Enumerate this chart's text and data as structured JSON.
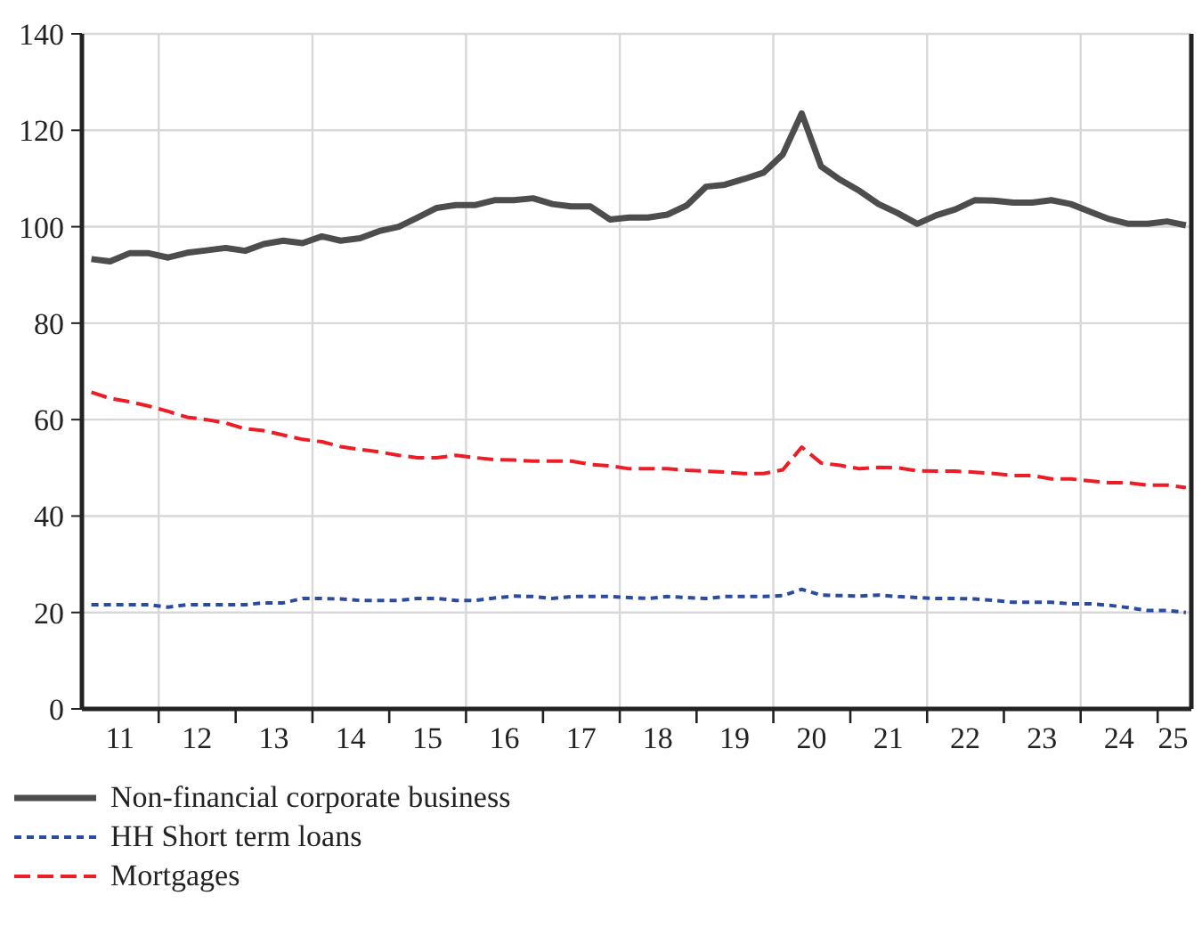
{
  "chart_data": {
    "type": "line",
    "x": [
      "2011-02-15",
      "2011-05-15",
      "2011-08-15",
      "2011-11-15",
      "2012-02-15",
      "2012-05-15",
      "2012-08-15",
      "2012-11-15",
      "2013-02-15",
      "2013-05-15",
      "2013-08-15",
      "2013-11-15",
      "2014-02-15",
      "2014-05-15",
      "2014-08-15",
      "2014-11-15",
      "2015-02-15",
      "2015-05-15",
      "2015-08-15",
      "2015-11-15",
      "2016-02-15",
      "2016-05-15",
      "2016-08-15",
      "2016-11-15",
      "2017-02-15",
      "2017-05-15",
      "2017-08-15",
      "2017-11-15",
      "2018-02-15",
      "2018-05-15",
      "2018-08-15",
      "2018-11-15",
      "2019-02-15",
      "2019-05-15",
      "2019-08-15",
      "2019-11-15",
      "2020-02-15",
      "2020-05-15",
      "2020-08-15",
      "2020-11-15",
      "2021-02-15",
      "2021-05-15",
      "2021-08-15",
      "2021-11-15",
      "2022-02-15",
      "2022-05-15",
      "2022-08-15",
      "2022-11-15",
      "2023-02-15",
      "2023-05-15",
      "2023-08-15",
      "2023-11-15",
      "2024-02-15",
      "2024-05-15",
      "2024-08-15",
      "2024-11-15",
      "2025-02-15",
      "2025-05-15"
    ],
    "xlim": [
      "2011-01-01",
      "2025-06-10"
    ],
    "xticks": [
      {
        "value": "2011-07-01",
        "label": "11"
      },
      {
        "value": "2012-07-01",
        "label": "12"
      },
      {
        "value": "2013-07-01",
        "label": "13"
      },
      {
        "value": "2014-07-01",
        "label": "14"
      },
      {
        "value": "2015-07-01",
        "label": "15"
      },
      {
        "value": "2016-07-01",
        "label": "16"
      },
      {
        "value": "2017-07-01",
        "label": "17"
      },
      {
        "value": "2018-07-01",
        "label": "18"
      },
      {
        "value": "2019-07-01",
        "label": "19"
      },
      {
        "value": "2020-07-01",
        "label": "20"
      },
      {
        "value": "2021-07-01",
        "label": "21"
      },
      {
        "value": "2022-07-01",
        "label": "22"
      },
      {
        "value": "2023-07-01",
        "label": "23"
      },
      {
        "value": "2024-07-01",
        "label": "24"
      },
      {
        "value": "2025-03-15",
        "label": "25"
      },
      {
        "value": "2012-01-01",
        "label": null
      },
      {
        "value": "2013-01-01",
        "label": null
      },
      {
        "value": "2014-01-01",
        "label": null
      },
      {
        "value": "2015-01-01",
        "label": null
      },
      {
        "value": "2016-01-01",
        "label": null
      },
      {
        "value": "2017-01-01",
        "label": null
      },
      {
        "value": "2018-01-01",
        "label": null
      },
      {
        "value": "2019-01-01",
        "label": null
      },
      {
        "value": "2020-01-01",
        "label": null
      },
      {
        "value": "2021-01-01",
        "label": null
      },
      {
        "value": "2022-01-01",
        "label": null
      },
      {
        "value": "2023-01-01",
        "label": null
      },
      {
        "value": "2024-01-01",
        "label": null
      },
      {
        "value": "2025-01-01",
        "label": null
      }
    ],
    "series": [
      {
        "name": "Non-financial corporate business",
        "color": "#4d4d4d",
        "line_style": "solid",
        "values": [
          93.3,
          92.8,
          94.5,
          94.5,
          93.6,
          94.6,
          95.1,
          95.6,
          95.0,
          96.4,
          97.1,
          96.6,
          98.0,
          97.1,
          97.6,
          99.1,
          100.0,
          101.9,
          103.9,
          104.5,
          104.5,
          105.5,
          105.5,
          105.9,
          104.7,
          104.2,
          104.2,
          101.5,
          101.9,
          101.9,
          102.5,
          104.4,
          108.3,
          108.7,
          109.9,
          111.2,
          115.0,
          123.5,
          112.5,
          109.7,
          107.4,
          104.7,
          102.8,
          100.6,
          102.4,
          103.6,
          105.5,
          105.4,
          105.0,
          105.0,
          105.5,
          104.7,
          103.1,
          101.6,
          100.6,
          100.6,
          101.1,
          100.3
        ]
      },
      {
        "name": "HH Short term loans",
        "color": "#2b4ba0",
        "line_style": "dotted",
        "values": [
          21.6,
          21.6,
          21.6,
          21.6,
          21.1,
          21.6,
          21.6,
          21.6,
          21.6,
          22.0,
          22.0,
          22.9,
          22.9,
          22.8,
          22.5,
          22.5,
          22.5,
          22.9,
          22.9,
          22.5,
          22.5,
          23.0,
          23.4,
          23.3,
          22.9,
          23.3,
          23.3,
          23.3,
          23.1,
          22.9,
          23.3,
          23.1,
          22.9,
          23.3,
          23.3,
          23.3,
          23.5,
          24.8,
          23.6,
          23.5,
          23.4,
          23.6,
          23.3,
          23.1,
          22.9,
          22.9,
          22.8,
          22.5,
          22.1,
          22.1,
          22.1,
          21.8,
          21.8,
          21.5,
          21.0,
          20.4,
          20.4,
          20.0
        ]
      },
      {
        "name": "Mortgages",
        "color": "#ee1c25",
        "line_style": "dashed",
        "values": [
          65.7,
          64.4,
          63.7,
          62.8,
          61.7,
          60.5,
          60.0,
          59.3,
          58.1,
          57.7,
          56.8,
          55.9,
          55.4,
          54.4,
          53.8,
          53.3,
          52.6,
          52.1,
          52.1,
          52.6,
          52.1,
          51.7,
          51.6,
          51.4,
          51.4,
          51.4,
          50.7,
          50.4,
          49.8,
          49.8,
          49.8,
          49.5,
          49.3,
          49.1,
          48.8,
          48.8,
          49.6,
          54.3,
          51.0,
          50.5,
          49.8,
          50.1,
          50.0,
          49.4,
          49.3,
          49.3,
          49.1,
          48.8,
          48.4,
          48.4,
          47.7,
          47.7,
          47.3,
          46.9,
          46.9,
          46.4,
          46.4,
          45.9
        ]
      }
    ],
    "ylim": [
      0,
      140
    ],
    "yticks": [
      0,
      20,
      40,
      60,
      80,
      100,
      120,
      140
    ],
    "grid": true,
    "legend": "bottom left",
    "marker": "none"
  }
}
